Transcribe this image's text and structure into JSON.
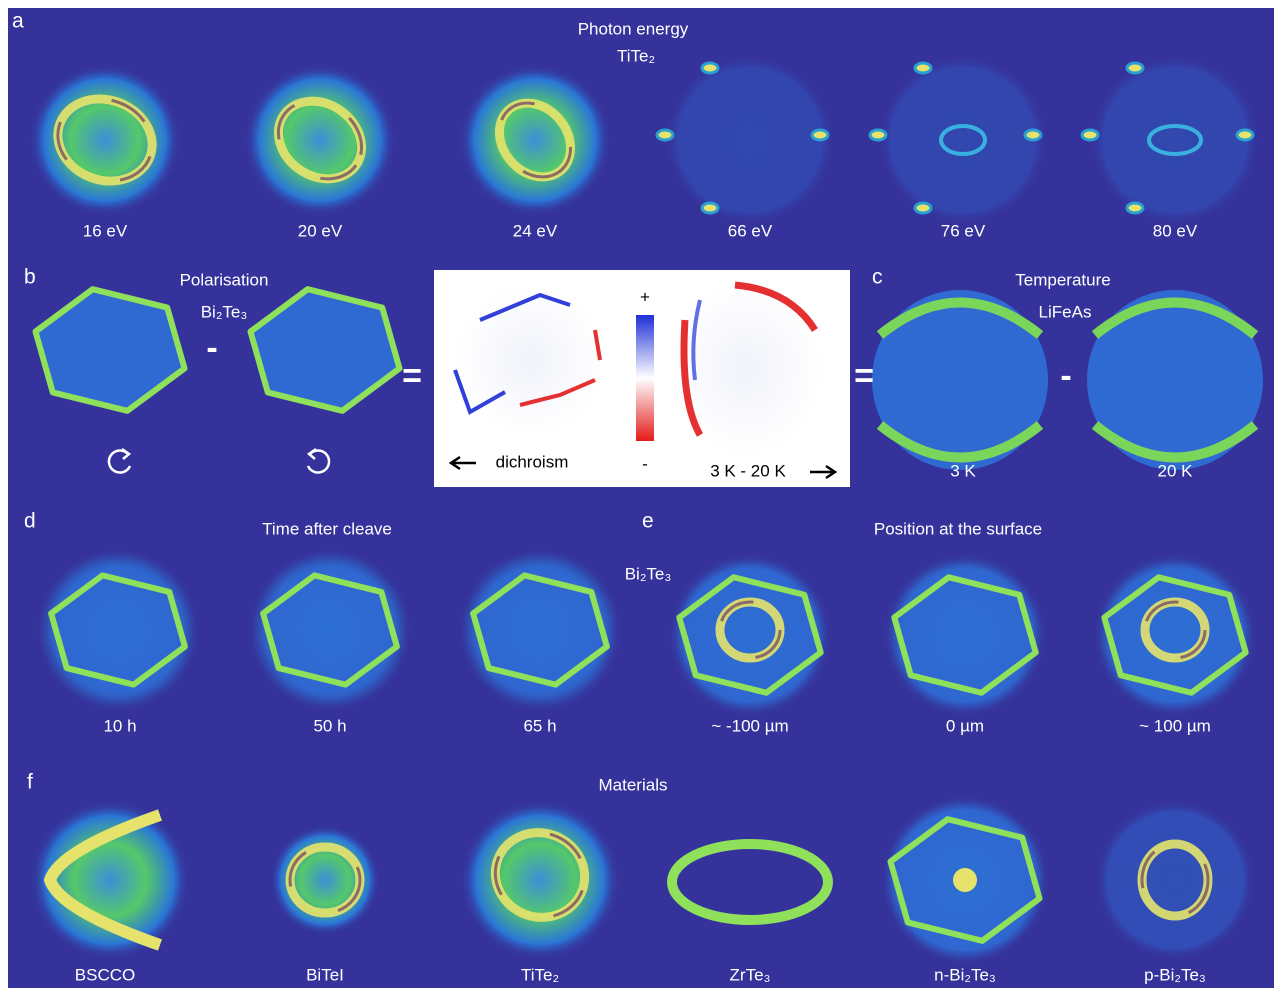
{
  "panel_a": {
    "label": "a",
    "title": "Photon energy",
    "material": "TiTe₂",
    "captions": [
      "16 eV",
      "20 eV",
      "24 eV",
      "66 eV",
      "76 eV",
      "80 eV"
    ]
  },
  "panel_b": {
    "label": "b",
    "title": "Polarisation",
    "material": "Bi₂Te₃",
    "operators": [
      "-",
      "="
    ]
  },
  "dichroism_inset": {
    "plus": "+",
    "minus": "-",
    "left_caption": "dichroism",
    "right_caption": "3 K - 20 K"
  },
  "panel_c": {
    "label": "c",
    "title": "Temperature",
    "material": "LiFeAs",
    "operators": [
      "=",
      "-"
    ],
    "captions": [
      "3 K",
      "20 K"
    ]
  },
  "panel_d": {
    "label": "d",
    "title": "Time after cleave",
    "captions": [
      "10 h",
      "50 h",
      "65 h"
    ]
  },
  "panel_e": {
    "label": "e",
    "title": "Position at the surface",
    "material": "Bi₂Te₃",
    "captions": [
      "~ -100 µm",
      "0 µm",
      "~ 100 µm"
    ]
  },
  "panel_f": {
    "label": "f",
    "title": "Materials",
    "captions": [
      "BSCCO",
      "BiTeI",
      "TiTe₂",
      "ZrTe₃",
      "n-Bi₂Te₃",
      "p-Bi₂Te₃"
    ]
  }
}
